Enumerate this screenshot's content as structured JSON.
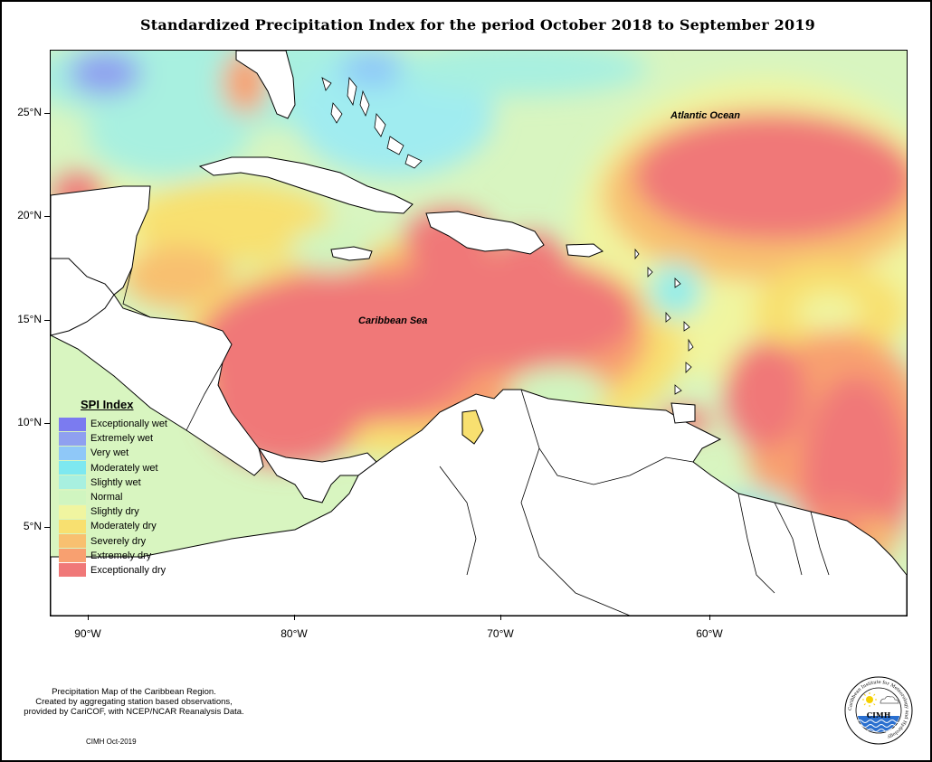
{
  "title": "Standardized Precipitation Index for the period October 2018 to September 2019",
  "map": {
    "labels": {
      "atlantic": "Atlantic Ocean",
      "caribbean": "Caribbean Sea"
    },
    "lat_ticks": [
      "25°N",
      "20°N",
      "15°N",
      "10°N",
      "5°N"
    ],
    "lon_ticks": [
      "90°W",
      "80°W",
      "70°W",
      "60°W"
    ]
  },
  "legend": {
    "title": "SPI Index",
    "items": [
      {
        "label": "Exceptionally wet",
        "color": "#7b7bf0"
      },
      {
        "label": "Extremely wet",
        "color": "#8fa0f0"
      },
      {
        "label": "Very wet",
        "color": "#8fc8f8"
      },
      {
        "label": "Moderately wet",
        "color": "#7ee8f0"
      },
      {
        "label": "Slightly wet",
        "color": "#a8f0e0"
      },
      {
        "label": "Normal",
        "color": "#d0f5c0"
      },
      {
        "label": "Slightly dry",
        "color": "#f0f5a0"
      },
      {
        "label": "Moderately dry",
        "color": "#f8e070"
      },
      {
        "label": "Severely dry",
        "color": "#f8c070"
      },
      {
        "label": "Extremely dry",
        "color": "#f8a070"
      },
      {
        "label": "Exceptionally dry",
        "color": "#f07878"
      }
    ]
  },
  "caption": {
    "line1": "Precipitation Map of the Caribbean Region.",
    "line2": "Created by aggregating station based observations,",
    "line3": "provided by CariCOF, with NCEP/NCAR Reanalysis Data."
  },
  "credit": "CIMH Oct-2019",
  "logo": {
    "text": "CIMH",
    "ring_text": "Caribbean Institute for Meteorology and Hydrology"
  }
}
